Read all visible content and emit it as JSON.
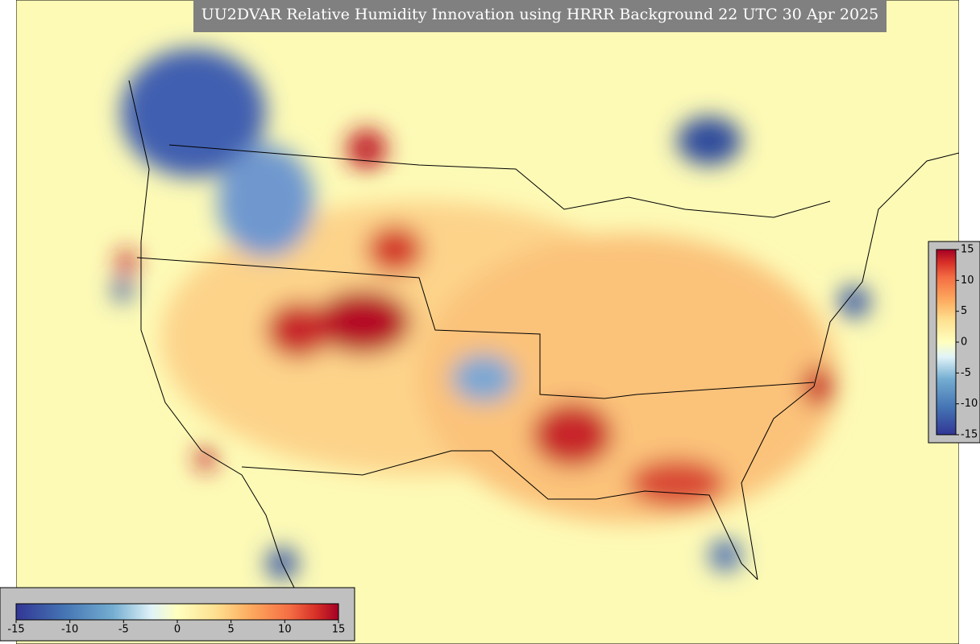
{
  "title": "UU2DVAR Relative Humidity Innovation using HRRR Background 22 UTC 30 Apr 2025",
  "colorbar": {
    "min": -15,
    "max": 15,
    "ticks": [
      -15,
      -10,
      -5,
      0,
      5,
      10,
      15
    ]
  }
}
